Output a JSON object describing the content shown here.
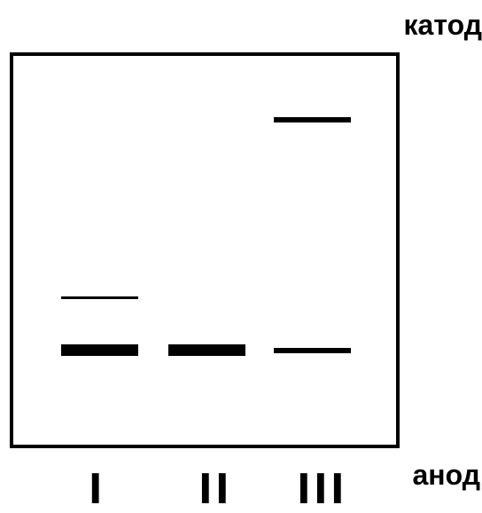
{
  "labels": {
    "cathode": "катод",
    "anode": "анод"
  },
  "lanes": [
    "I",
    "II",
    "III"
  ],
  "colors": {
    "ink": "#000000",
    "background": "#ffffff"
  }
}
